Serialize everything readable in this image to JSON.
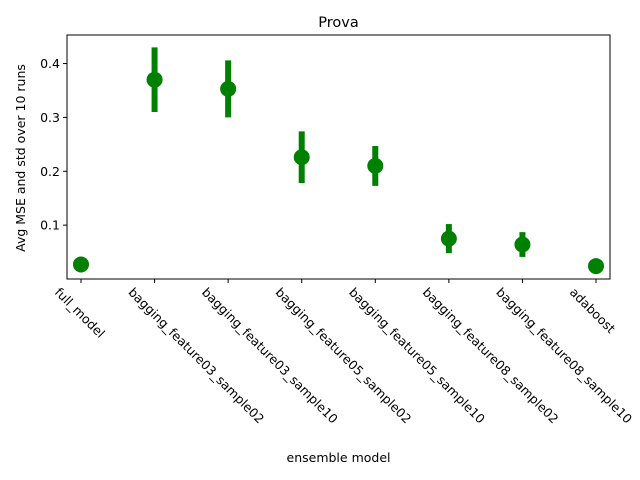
{
  "chart_data": {
    "type": "scatter",
    "title": "Prova",
    "xlabel": "ensemble model",
    "ylabel": "Avg MSE and std over 10 runs",
    "categories": [
      "full_model",
      "bagging_feature03_sample02",
      "bagging_feature03_sample10",
      "bagging_feature05_sample02",
      "bagging_feature05_sample10",
      "bagging_feature08_sample02",
      "bagging_feature08_sample10",
      "adaboost"
    ],
    "means": [
      0.027,
      0.37,
      0.353,
      0.226,
      0.21,
      0.075,
      0.064,
      0.024
    ],
    "std": [
      0.0,
      0.06,
      0.053,
      0.048,
      0.037,
      0.027,
      0.023,
      0.0
    ],
    "ylim": [
      0.0,
      0.453
    ],
    "yticks": [
      0.1,
      0.2,
      0.3,
      0.4
    ],
    "ytick_labels": [
      "0.1",
      "0.2",
      "0.3",
      "0.4"
    ],
    "color": "#008000",
    "grid": false
  }
}
